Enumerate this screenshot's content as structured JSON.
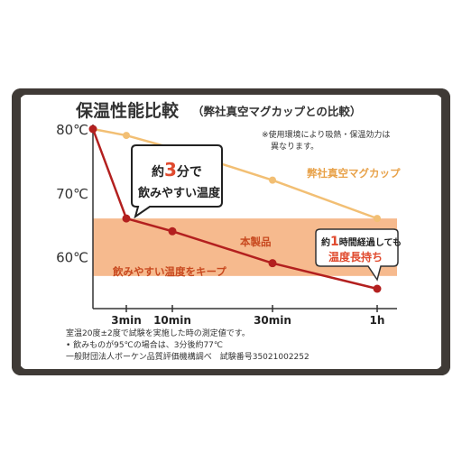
{
  "title": "保温性能比較",
  "subtitle": "（弊社真空マグカップとの比較）",
  "note_lines": [
    "※使用環境により吸熱・保温効力は",
    "異なります。"
  ],
  "bubble_top_prefix": "約",
  "bubble_top_highlight": "3",
  "bubble_top_suffix": "分で",
  "bubble_bottom": "飲みやすい温度",
  "badge_line1_prefix": "約",
  "badge_line1_highlight": "1",
  "badge_line1_mid": "時間",
  "badge_line1_suffix": "経過しても",
  "badge_line2": "温度長持ち",
  "band_label": "飲みやすい温度をキープ",
  "footer_lines": [
    "室温20度±2度で試験を実施した時の測定値です。",
    "• 飲みものが95℃の場合は、3分後約77℃",
    "一般財団法人ボーケン品質評価機構調べ　試験番号35021002252"
  ],
  "colors": {
    "frame": "#3f3a36",
    "mug_line": "#f2bf74",
    "product_line": "#b3201f",
    "band": "#f6ba8e",
    "highlight": "#e04a2e",
    "label_text": "#c8491f",
    "mug_label": "#e8a24a"
  },
  "chart_data": {
    "type": "line",
    "x": [
      "0",
      "3min",
      "10min",
      "30min",
      "1h"
    ],
    "x_minutes": [
      0,
      3,
      10,
      30,
      60
    ],
    "ylabel": "",
    "xlabel": "",
    "y_ticks": [
      "80℃",
      "70℃",
      "60℃"
    ],
    "y_tick_values": [
      80,
      70,
      60
    ],
    "ylim": [
      55,
      80
    ],
    "band": {
      "label": "飲みやすい温度をキープ",
      "from": 57,
      "to": 66
    },
    "series": [
      {
        "name": "弊社真空マグカップ",
        "x_index": [
          0,
          1,
          2,
          3,
          4
        ],
        "values": [
          80,
          79,
          77,
          72,
          66
        ]
      },
      {
        "name": "本製品",
        "x_index": [
          0,
          1,
          2,
          3,
          4
        ],
        "values": [
          80,
          66,
          64,
          59,
          55
        ]
      }
    ],
    "grid": false
  }
}
